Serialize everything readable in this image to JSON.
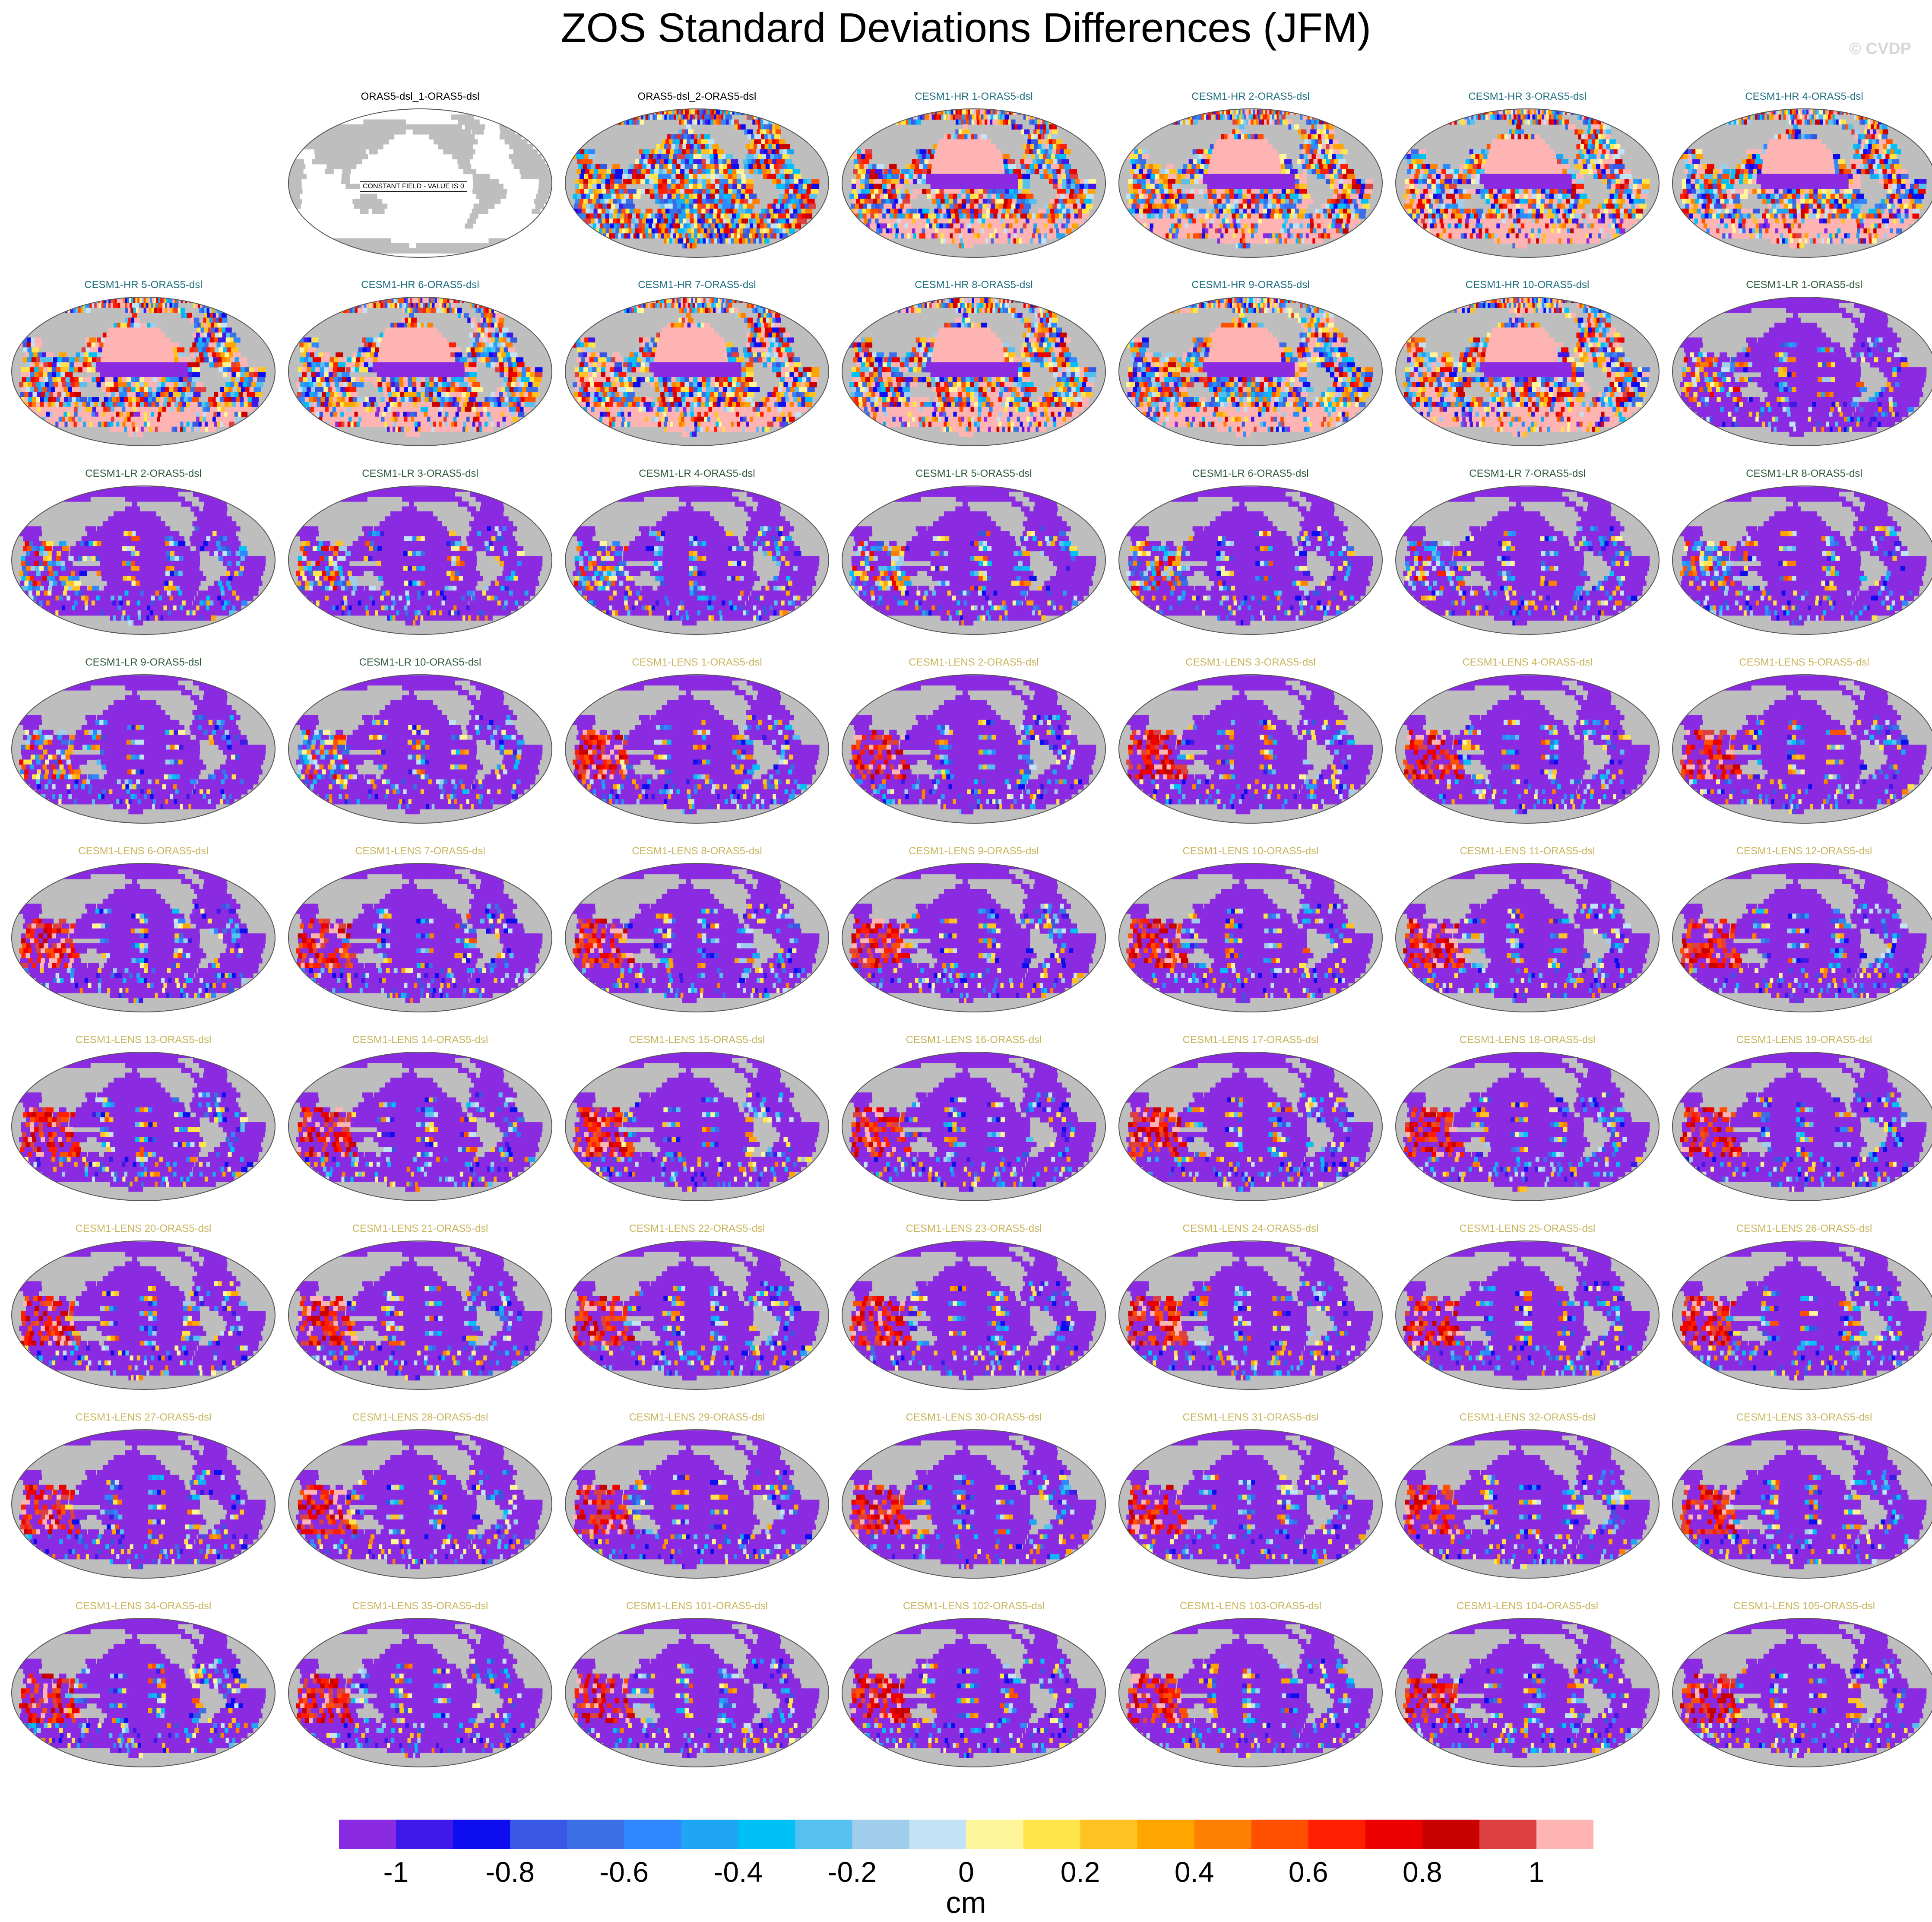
{
  "title": "ZOS Standard Deviations Differences (JFM)",
  "watermark": "© CVDP",
  "chart_data": {
    "type": "heatmap",
    "title": "ZOS Standard Deviations Differences (JFM)",
    "projection": "global map, Pacific-centered",
    "grid": "7 columns x 10 rows, first cell empty",
    "units": "cm",
    "colorbar": {
      "ticks": [
        "-1",
        "-0.8",
        "-0.6",
        "-0.4",
        "-0.2",
        "0",
        "0.2",
        "0.4",
        "0.6",
        "0.8",
        "1"
      ],
      "tick_values": [
        -1,
        -0.8,
        -0.6,
        -0.4,
        -0.2,
        0,
        0.2,
        0.4,
        0.6,
        0.8,
        1
      ],
      "range": [
        -1.1,
        1.1
      ],
      "colors": [
        "#8a2be2",
        "#3f19e8",
        "#0d0df0",
        "#3858e3",
        "#3c6ee6",
        "#2f88ff",
        "#1ea6f5",
        "#00c0f8",
        "#56c1f0",
        "#a0cdeb",
        "#c3e2f5",
        "#fff59a",
        "#ffe44a",
        "#fec323",
        "#ffa500",
        "#ff8000",
        "#ff5000",
        "#ff1e00",
        "#ec0000",
        "#c80000",
        "#dc4040",
        "#ffb4b4"
      ]
    },
    "panels": [
      {
        "label": "ORAS5-dsl_1-ORAS5-dsl",
        "group": "obs",
        "note": "CONSTANT FIELD - VALUE IS 0"
      },
      {
        "label": "ORAS5-dsl_2-ORAS5-dsl",
        "group": "obs2"
      },
      {
        "label": "CESM1-HR 1-ORAS5-dsl",
        "group": "hr"
      },
      {
        "label": "CESM1-HR 2-ORAS5-dsl",
        "group": "hr"
      },
      {
        "label": "CESM1-HR 3-ORAS5-dsl",
        "group": "hr"
      },
      {
        "label": "CESM1-HR 4-ORAS5-dsl",
        "group": "hr"
      },
      {
        "label": "CESM1-HR 5-ORAS5-dsl",
        "group": "hr"
      },
      {
        "label": "CESM1-HR 6-ORAS5-dsl",
        "group": "hr"
      },
      {
        "label": "CESM1-HR 7-ORAS5-dsl",
        "group": "hr"
      },
      {
        "label": "CESM1-HR 8-ORAS5-dsl",
        "group": "hr"
      },
      {
        "label": "CESM1-HR 9-ORAS5-dsl",
        "group": "hr"
      },
      {
        "label": "CESM1-HR 10-ORAS5-dsl",
        "group": "hr"
      },
      {
        "label": "CESM1-LR 1-ORAS5-dsl",
        "group": "lr"
      },
      {
        "label": "CESM1-LR 2-ORAS5-dsl",
        "group": "lr"
      },
      {
        "label": "CESM1-LR 3-ORAS5-dsl",
        "group": "lr"
      },
      {
        "label": "CESM1-LR 4-ORAS5-dsl",
        "group": "lr"
      },
      {
        "label": "CESM1-LR 5-ORAS5-dsl",
        "group": "lr"
      },
      {
        "label": "CESM1-LR 6-ORAS5-dsl",
        "group": "lr"
      },
      {
        "label": "CESM1-LR 7-ORAS5-dsl",
        "group": "lr"
      },
      {
        "label": "CESM1-LR 8-ORAS5-dsl",
        "group": "lr"
      },
      {
        "label": "CESM1-LR 9-ORAS5-dsl",
        "group": "lr"
      },
      {
        "label": "CESM1-LR 10-ORAS5-dsl",
        "group": "lr"
      },
      {
        "label": "CESM1-LENS 1-ORAS5-dsl",
        "group": "lens"
      },
      {
        "label": "CESM1-LENS 2-ORAS5-dsl",
        "group": "lens"
      },
      {
        "label": "CESM1-LENS 3-ORAS5-dsl",
        "group": "lens"
      },
      {
        "label": "CESM1-LENS 4-ORAS5-dsl",
        "group": "lens"
      },
      {
        "label": "CESM1-LENS 5-ORAS5-dsl",
        "group": "lens"
      },
      {
        "label": "CESM1-LENS 6-ORAS5-dsl",
        "group": "lens"
      },
      {
        "label": "CESM1-LENS 7-ORAS5-dsl",
        "group": "lens"
      },
      {
        "label": "CESM1-LENS 8-ORAS5-dsl",
        "group": "lens"
      },
      {
        "label": "CESM1-LENS 9-ORAS5-dsl",
        "group": "lens"
      },
      {
        "label": "CESM1-LENS 10-ORAS5-dsl",
        "group": "lens"
      },
      {
        "label": "CESM1-LENS 11-ORAS5-dsl",
        "group": "lens"
      },
      {
        "label": "CESM1-LENS 12-ORAS5-dsl",
        "group": "lens"
      },
      {
        "label": "CESM1-LENS 13-ORAS5-dsl",
        "group": "lens"
      },
      {
        "label": "CESM1-LENS 14-ORAS5-dsl",
        "group": "lens"
      },
      {
        "label": "CESM1-LENS 15-ORAS5-dsl",
        "group": "lens"
      },
      {
        "label": "CESM1-LENS 16-ORAS5-dsl",
        "group": "lens"
      },
      {
        "label": "CESM1-LENS 17-ORAS5-dsl",
        "group": "lens"
      },
      {
        "label": "CESM1-LENS 18-ORAS5-dsl",
        "group": "lens"
      },
      {
        "label": "CESM1-LENS 19-ORAS5-dsl",
        "group": "lens"
      },
      {
        "label": "CESM1-LENS 20-ORAS5-dsl",
        "group": "lens"
      },
      {
        "label": "CESM1-LENS 21-ORAS5-dsl",
        "group": "lens"
      },
      {
        "label": "CESM1-LENS 22-ORAS5-dsl",
        "group": "lens"
      },
      {
        "label": "CESM1-LENS 23-ORAS5-dsl",
        "group": "lens"
      },
      {
        "label": "CESM1-LENS 24-ORAS5-dsl",
        "group": "lens"
      },
      {
        "label": "CESM1-LENS 25-ORAS5-dsl",
        "group": "lens"
      },
      {
        "label": "CESM1-LENS 26-ORAS5-dsl",
        "group": "lens"
      },
      {
        "label": "CESM1-LENS 27-ORAS5-dsl",
        "group": "lens"
      },
      {
        "label": "CESM1-LENS 28-ORAS5-dsl",
        "group": "lens"
      },
      {
        "label": "CESM1-LENS 29-ORAS5-dsl",
        "group": "lens"
      },
      {
        "label": "CESM1-LENS 30-ORAS5-dsl",
        "group": "lens"
      },
      {
        "label": "CESM1-LENS 31-ORAS5-dsl",
        "group": "lens"
      },
      {
        "label": "CESM1-LENS 32-ORAS5-dsl",
        "group": "lens"
      },
      {
        "label": "CESM1-LENS 33-ORAS5-dsl",
        "group": "lens"
      },
      {
        "label": "CESM1-LENS 34-ORAS5-dsl",
        "group": "lens"
      },
      {
        "label": "CESM1-LENS 35-ORAS5-dsl",
        "group": "lens"
      },
      {
        "label": "CESM1-LENS 101-ORAS5-dsl",
        "group": "lens"
      },
      {
        "label": "CESM1-LENS 102-ORAS5-dsl",
        "group": "lens"
      },
      {
        "label": "CESM1-LENS 103-ORAS5-dsl",
        "group": "lens"
      },
      {
        "label": "CESM1-LENS 104-ORAS5-dsl",
        "group": "lens"
      },
      {
        "label": "CESM1-LENS 105-ORAS5-dsl",
        "group": "lens"
      }
    ],
    "group_title_colors": {
      "obs": "#000000",
      "obs2": "#000000",
      "hr": "#1f6f80",
      "lr": "#2d5a3a",
      "lens": "#c8b45a"
    },
    "land_color": "#bebebe",
    "legend": "horizontal colorbar at bottom"
  }
}
